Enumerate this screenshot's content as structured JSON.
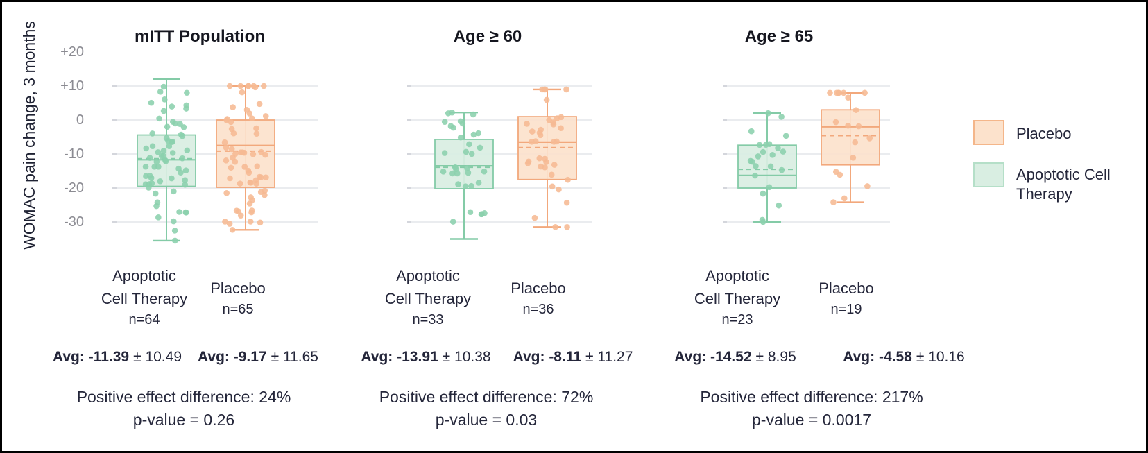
{
  "figure": {
    "ylabel": "WOMAC pain change, 3 months",
    "yticks": [
      "+20",
      "+10",
      "0",
      "-10",
      "-20",
      "-30"
    ]
  },
  "chart_data": {
    "type": "boxplot",
    "title": "",
    "ylabel": "WOMAC pain change, 3 months",
    "y_axis": {
      "tick_labels": [
        "+20",
        "+10",
        "0",
        "-10",
        "-20",
        "-30"
      ],
      "tick_values": [
        20,
        10,
        0,
        -10,
        -20,
        -30
      ],
      "gridline_values": [
        10,
        0,
        -10,
        -20,
        -30
      ],
      "ylim": [
        -36,
        20
      ],
      "grid": true
    },
    "legend_position": "right",
    "panels": [
      {
        "title": "mITT Population",
        "effect_label": "Positive effect difference: 24%",
        "p_value_label": "p-value = 0.26",
        "groups": [
          {
            "name": "Apoptotic Cell Therapy",
            "label_lines": [
              "Apoptotic",
              "Cell Therapy"
            ],
            "n": 64,
            "n_label": "n=64",
            "color": "green",
            "avg": -11.39,
            "sd": 10.49,
            "avg_bold": "Avg: -11.39",
            "avg_rest": "± 10.49",
            "box": {
              "whisker_low": -35.5,
              "q1": -19.5,
              "median": -11.7,
              "mean": -11.39,
              "q3": -4.4,
              "whisker_high": 12
            }
          },
          {
            "name": "Placebo",
            "label_lines": [
              "Placebo"
            ],
            "n": 65,
            "n_label": "n=65",
            "color": "orange",
            "avg": -9.17,
            "sd": 11.65,
            "avg_bold": "Avg: -9.17",
            "avg_rest": "± 11.65",
            "box": {
              "whisker_low": -32.3,
              "q1": -19.8,
              "median": -7.5,
              "mean": -9.17,
              "q3": 0,
              "whisker_high": 10
            }
          }
        ]
      },
      {
        "title": "Age ≥ 60",
        "effect_label": "Positive effect difference: 72%",
        "p_value_label": "p-value = 0.03",
        "groups": [
          {
            "name": "Apoptotic Cell Therapy",
            "label_lines": [
              "Apoptotic",
              "Cell Therapy"
            ],
            "n": 33,
            "n_label": "n=33",
            "color": "green",
            "avg": -13.91,
            "sd": 10.38,
            "avg_bold": "Avg: -13.91",
            "avg_rest": "± 10.38",
            "box": {
              "whisker_low": -35,
              "q1": -20.2,
              "median": -13.5,
              "mean": -13.91,
              "q3": -5.7,
              "whisker_high": 2.2
            }
          },
          {
            "name": "Placebo",
            "label_lines": [
              "Placebo"
            ],
            "n": 36,
            "n_label": "n=36",
            "color": "orange",
            "avg": -8.11,
            "sd": 11.27,
            "avg_bold": "Avg: -8.11",
            "avg_rest": "± 11.27",
            "box": {
              "whisker_low": -31.5,
              "q1": -17.5,
              "median": -6.5,
              "mean": -8.11,
              "q3": 1,
              "whisker_high": 9
            }
          }
        ]
      },
      {
        "title": "Age ≥ 65",
        "effect_label": "Positive effect difference: 217%",
        "p_value_label": "p-value = 0.0017",
        "groups": [
          {
            "name": "Apoptotic Cell Therapy",
            "label_lines": [
              "Apoptotic",
              "Cell Therapy"
            ],
            "n": 23,
            "n_label": "n=23",
            "color": "green",
            "avg": -14.52,
            "sd": 8.95,
            "avg_bold": "Avg: -14.52",
            "avg_rest": "± 8.95",
            "box": {
              "whisker_low": -30,
              "q1": -20,
              "median": -16.3,
              "mean": -14.52,
              "q3": -7.4,
              "whisker_high": 2
            }
          },
          {
            "name": "Placebo",
            "label_lines": [
              "Placebo"
            ],
            "n": 19,
            "n_label": "n=19",
            "color": "orange",
            "avg": -4.58,
            "sd": 10.16,
            "avg_bold": "Avg: -4.58",
            "avg_rest": "± 10.16",
            "box": {
              "whisker_low": -24.2,
              "q1": -13.2,
              "median": -2,
              "mean": -4.58,
              "q3": 3,
              "whisker_high": 8
            }
          }
        ]
      }
    ],
    "legend": [
      {
        "label": "Placebo",
        "color": "orange"
      },
      {
        "label": "Apoptotic Cell Therapy",
        "color": "green"
      }
    ]
  },
  "colors": {
    "green_fill": "#d9eee2",
    "green_stroke": "#84cba7",
    "green_point": "#8bd0ad",
    "orange_fill": "#fce2cc",
    "orange_stroke": "#f2a87c",
    "orange_point": "#f6ba93",
    "grid": "#e3e6ea",
    "tick_stub": "#c9ccd3",
    "text_dark": "#24263a",
    "text_gray": "#8b8b92",
    "border": "#000000"
  }
}
